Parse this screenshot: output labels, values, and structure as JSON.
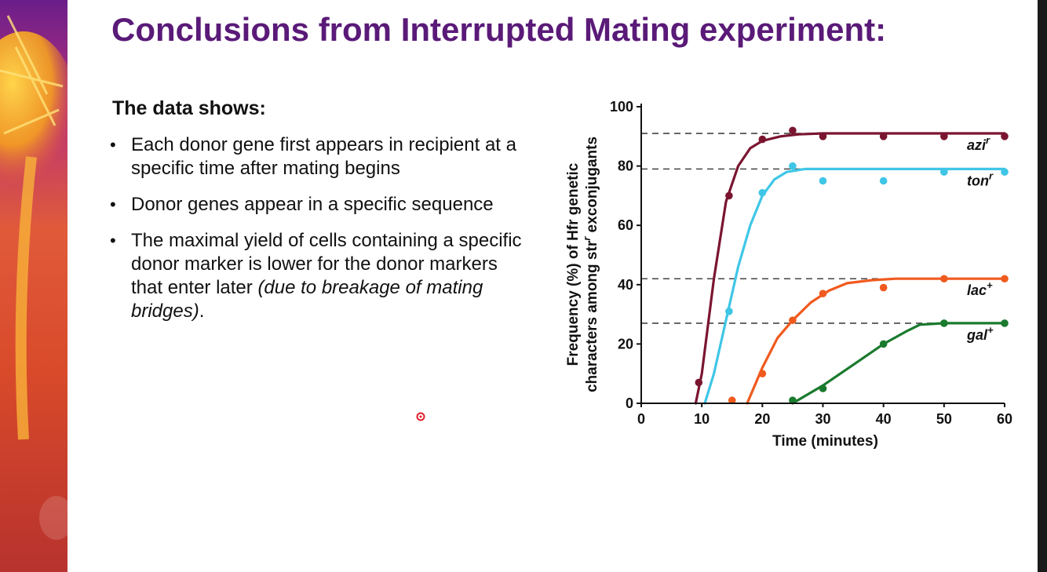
{
  "slide": {
    "title": "Conclusions from Interrupted Mating experiment:",
    "subhead": "The data shows:",
    "bullets": [
      {
        "text": "Each donor gene first appears in recipient at a specific time after mating begins"
      },
      {
        "text": "Donor genes appear in a specific sequence"
      },
      {
        "text": "The maximal yield of cells containing a specific donor marker is lower for the donor markers that enter later ",
        "italic": "(due to breakage of mating bridges)",
        "suffix": "."
      }
    ],
    "colors": {
      "title": "#5a1a78",
      "text": "#111111"
    }
  },
  "chart_data": {
    "type": "line",
    "xlabel": "Time (minutes)",
    "ylabel_line1": "Frequency (%) of Hfr genetic",
    "ylabel_line2": "characters among str",
    "ylabel_line2_sup": "r",
    "ylabel_line2_end": " exconjugants",
    "xlim": [
      0,
      60
    ],
    "ylim": [
      0,
      100
    ],
    "xticks": [
      "0",
      "10",
      "20",
      "30",
      "40",
      "50",
      "60"
    ],
    "yticks": [
      "0",
      "20",
      "40",
      "60",
      "80",
      "100"
    ],
    "reference_lines": [
      91,
      79,
      42,
      27
    ],
    "series": [
      {
        "name": "azi",
        "sup": "r",
        "color": "#7a1530",
        "curve": [
          [
            9,
            0
          ],
          [
            10,
            10
          ],
          [
            12,
            42
          ],
          [
            14,
            68
          ],
          [
            16,
            80
          ],
          [
            18,
            86
          ],
          [
            20,
            88.5
          ],
          [
            23,
            90
          ],
          [
            26,
            90.7
          ],
          [
            30,
            91
          ],
          [
            60,
            91
          ]
        ],
        "points": [
          [
            9.5,
            7
          ],
          [
            14.5,
            70
          ],
          [
            20,
            89
          ],
          [
            25,
            92
          ],
          [
            30,
            90
          ],
          [
            40,
            90
          ],
          [
            50,
            90
          ],
          [
            60,
            90
          ]
        ]
      },
      {
        "name": "ton",
        "sup": "r",
        "color": "#3fc6e6",
        "curve": [
          [
            10.5,
            0
          ],
          [
            12,
            10
          ],
          [
            14,
            28
          ],
          [
            16,
            46
          ],
          [
            18,
            60
          ],
          [
            20,
            70
          ],
          [
            22,
            75.5
          ],
          [
            24,
            78
          ],
          [
            27,
            79
          ],
          [
            60,
            79
          ]
        ],
        "points": [
          [
            14.5,
            31
          ],
          [
            20,
            71
          ],
          [
            25,
            80
          ],
          [
            30,
            75
          ],
          [
            40,
            75
          ],
          [
            50,
            78
          ],
          [
            60,
            78
          ]
        ]
      },
      {
        "name": "lac",
        "sup": "+",
        "color": "#f05a1e",
        "curve": [
          [
            17.5,
            0
          ],
          [
            20,
            12
          ],
          [
            22.5,
            22
          ],
          [
            25,
            28
          ],
          [
            28,
            34
          ],
          [
            31,
            38
          ],
          [
            34,
            40.5
          ],
          [
            38,
            41.5
          ],
          [
            42,
            42
          ],
          [
            60,
            42
          ]
        ],
        "points": [
          [
            15,
            1
          ],
          [
            20,
            10
          ],
          [
            25,
            28
          ],
          [
            30,
            37
          ],
          [
            40,
            39
          ],
          [
            50,
            42
          ],
          [
            60,
            42
          ]
        ]
      },
      {
        "name": "gal",
        "sup": "+",
        "color": "#1a7a2e",
        "curve": [
          [
            25,
            0
          ],
          [
            30,
            6
          ],
          [
            35,
            13
          ],
          [
            40,
            20
          ],
          [
            44,
            24.5
          ],
          [
            46,
            26.5
          ],
          [
            50,
            27
          ],
          [
            60,
            27
          ]
        ],
        "points": [
          [
            25,
            1
          ],
          [
            30,
            5
          ],
          [
            40,
            20
          ],
          [
            50,
            27
          ],
          [
            60,
            27
          ]
        ]
      }
    ],
    "legend_placement": "inline-right"
  }
}
